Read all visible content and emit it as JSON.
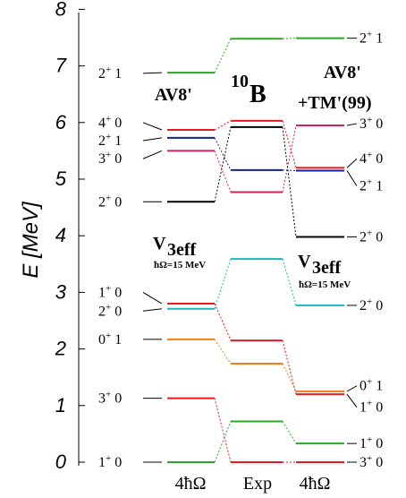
{
  "chart_data": {
    "type": "level-scheme",
    "ylabel": "E [MeV]",
    "ylim": [
      0,
      8
    ],
    "yticks": [
      "0",
      "1",
      "2",
      "3",
      "4",
      "5",
      "6",
      "7",
      "8"
    ],
    "categories": [
      "4ħΩ",
      "Exp",
      "4ħΩ"
    ],
    "title": "10B",
    "annotations": {
      "left_model": "AV8'",
      "right_model_line1": "AV8'",
      "right_model_line2": "+TM'(99)",
      "veff_left": "V3eff",
      "veff_left_sub": "ħΩ=15 MeV",
      "veff_right": "V3eff",
      "veff_right_sub": "ħΩ=15 MeV"
    },
    "columns": [
      {
        "name": "4ħΩ AV8'",
        "levels": [
          {
            "J": "1+",
            "T": "0",
            "E": 0.0,
            "color": "#2aa81f"
          },
          {
            "J": "3+",
            "T": "0",
            "E": 1.13,
            "color": "#e8191f"
          },
          {
            "J": "0+",
            "T": "1",
            "E": 2.17,
            "color": "#ff7a12"
          },
          {
            "J": "2+",
            "T": "0",
            "E": 2.71,
            "color": "#1ab7c0"
          },
          {
            "J": "1+",
            "T": "0",
            "E": 2.8,
            "color": "#e8191f"
          },
          {
            "J": "2+",
            "T": "0",
            "E": 4.6,
            "color": "#000000"
          },
          {
            "J": "3+",
            "T": "0",
            "E": 5.5,
            "color": "#d0206a"
          },
          {
            "J": "2+",
            "T": "1",
            "E": 5.73,
            "color": "#1020a0"
          },
          {
            "J": "4+",
            "T": "0",
            "E": 5.87,
            "color": "#e8191f"
          },
          {
            "J": "2+",
            "T": "1",
            "E": 6.88,
            "color": "#2aa81f"
          }
        ]
      },
      {
        "name": "Exp",
        "levels": [
          {
            "J": "3+",
            "T": "0",
            "E": 0.0,
            "color": "#e8191f"
          },
          {
            "J": "1+",
            "T": "0",
            "E": 0.72,
            "color": "#2aa81f"
          },
          {
            "J": "0+",
            "T": "1",
            "E": 1.74,
            "color": "#ff7a12"
          },
          {
            "J": "1+",
            "T": "0",
            "E": 2.15,
            "color": "#e8191f"
          },
          {
            "J": "2+",
            "T": "0",
            "E": 3.59,
            "color": "#1ab7c0"
          },
          {
            "J": "3+",
            "T": "0",
            "E": 4.77,
            "color": "#d0206a"
          },
          {
            "J": "2+",
            "T": "1",
            "E": 5.16,
            "color": "#1020a0"
          },
          {
            "J": "2+",
            "T": "0",
            "E": 5.92,
            "color": "#000000"
          },
          {
            "J": "4+",
            "T": "0",
            "E": 6.03,
            "color": "#e8191f"
          },
          {
            "J": "2+",
            "T": "1",
            "E": 7.48,
            "color": "#2aa81f"
          }
        ]
      },
      {
        "name": "4ħΩ AV8'+TM'(99)",
        "levels": [
          {
            "J": "3+",
            "T": "0",
            "E": 0.0,
            "color": "#e8191f"
          },
          {
            "J": "1+",
            "T": "0",
            "E": 0.33,
            "color": "#2aa81f"
          },
          {
            "J": "1+",
            "T": "0",
            "E": 1.2,
            "color": "#e8191f"
          },
          {
            "J": "0+",
            "T": "1",
            "E": 1.25,
            "color": "#ff7a12"
          },
          {
            "J": "2+",
            "T": "0",
            "E": 2.77,
            "color": "#1ab7c0"
          },
          {
            "J": "2+",
            "T": "0",
            "E": 3.98,
            "color": "#000000"
          },
          {
            "J": "2+",
            "T": "1",
            "E": 5.15,
            "color": "#1020a0"
          },
          {
            "J": "4+",
            "T": "0",
            "E": 5.2,
            "color": "#e8191f"
          },
          {
            "J": "3+",
            "T": "0",
            "E": 5.95,
            "color": "#d0206a"
          },
          {
            "J": "2+",
            "T": "1",
            "E": 7.49,
            "color": "#2aa81f"
          }
        ]
      }
    ],
    "left_labels": [
      {
        "text": "1+ 0",
        "E": 0.0
      },
      {
        "text": "3+ 0",
        "E": 1.13
      },
      {
        "text": "0+ 1",
        "E": 2.17
      },
      {
        "text": "2+ 0",
        "E": 2.67
      },
      {
        "text": "1+ 0",
        "E": 3.0
      },
      {
        "text": "2+ 0",
        "E": 4.6
      },
      {
        "text": "3+ 0",
        "E": 5.36
      },
      {
        "text": "2+ 1",
        "E": 5.68
      },
      {
        "text": "4+ 0",
        "E": 6.0
      },
      {
        "text": "2+ 1",
        "E": 6.87
      }
    ],
    "right_labels": [
      {
        "text": "3+ 0",
        "E": 0.0
      },
      {
        "text": "1+ 0",
        "E": 0.33
      },
      {
        "text": "1+ 0",
        "E": 0.97
      },
      {
        "text": "0+ 1",
        "E": 1.35
      },
      {
        "text": "2+ 0",
        "E": 2.77
      },
      {
        "text": "2+ 0",
        "E": 3.98
      },
      {
        "text": "2+ 1",
        "E": 4.88
      },
      {
        "text": "4+ 0",
        "E": 5.36
      },
      {
        "text": "3+ 0",
        "E": 5.98
      },
      {
        "text": "2+ 1",
        "E": 7.49
      }
    ]
  }
}
